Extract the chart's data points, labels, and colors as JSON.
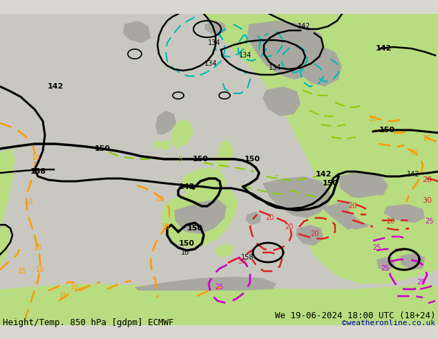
{
  "title_left": "Height/Temp. 850 hPa [gdpm] ECMWF",
  "title_right": "We 19-06-2024 18:00 UTC (18+24)",
  "credit": "©weatheronline.co.uk",
  "bg_color": "#d8d8d0",
  "land_green": "#b8dc80",
  "land_gray": "#a8a8a0",
  "ocean_color": "#c8c8c0",
  "h_color": "#000000",
  "t_orange": "#ff9900",
  "t_yellow": "#88cc00",
  "t_red": "#dd2222",
  "t_magenta": "#cc00cc",
  "t_cyan": "#00b8b8",
  "font_title": 9,
  "font_credit": 8,
  "fig_width": 6.34,
  "fig_height": 4.9,
  "dpi": 100
}
